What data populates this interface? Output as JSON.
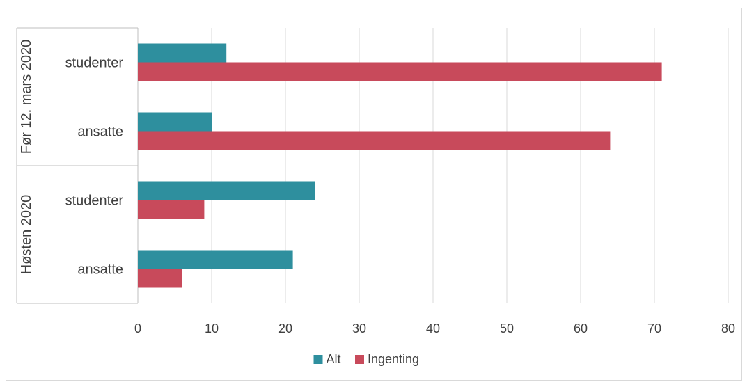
{
  "chart_data": {
    "type": "bar",
    "orientation": "horizontal",
    "title": "",
    "xlabel": "",
    "ylabel": "",
    "xlim": [
      0,
      80
    ],
    "x_ticks": [
      0,
      10,
      20,
      30,
      40,
      50,
      60,
      70,
      80
    ],
    "x_tick_labels": [
      "0",
      "10",
      "20",
      "30",
      "40",
      "50",
      "60",
      "70",
      "80"
    ],
    "grid": "vertical",
    "legend_position": "bottom",
    "groups": [
      {
        "label": "Før 12. mars 2020",
        "categories": [
          "studenter",
          "ansatte"
        ]
      },
      {
        "label": "Høsten 2020",
        "categories": [
          "studenter",
          "ansatte"
        ]
      }
    ],
    "series": [
      {
        "name": "Alt",
        "color": "#2e8f9e",
        "values": [
          12,
          10,
          24,
          21
        ]
      },
      {
        "name": "Ingenting",
        "color": "#c84a5b",
        "values": [
          71,
          64,
          9,
          6
        ]
      }
    ]
  }
}
